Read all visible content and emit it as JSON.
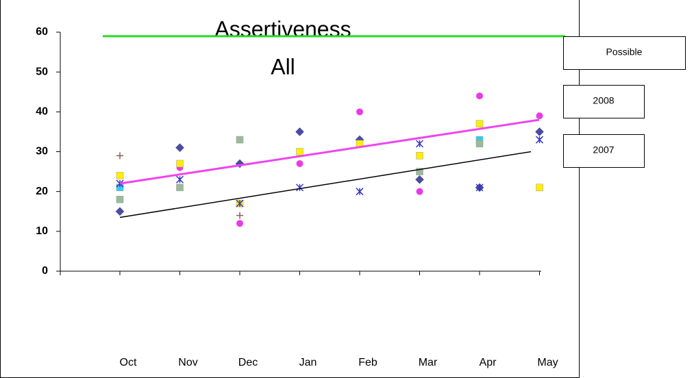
{
  "chart_data": {
    "type": "scatter",
    "title": "Assertiveness",
    "subtitle": "All",
    "categories": [
      "Oct",
      "Nov",
      "Dec",
      "Jan",
      "Feb",
      "Mar",
      "Apr",
      "May"
    ],
    "ylim": [
      0,
      60
    ],
    "yticks": [
      0,
      10,
      20,
      30,
      40,
      50,
      60
    ],
    "series": [
      {
        "color": "#4b4ba8",
        "marker": "diamond",
        "values": [
          15,
          31,
          27,
          35,
          33,
          23,
          21,
          35
        ]
      },
      {
        "color": "#e83be8",
        "marker": "circle",
        "values": [
          18,
          26,
          12,
          27,
          40,
          20,
          44,
          39
        ]
      },
      {
        "color": "#ffee00",
        "marker": "square",
        "values": [
          24,
          27,
          17,
          30,
          32,
          29,
          37,
          21
        ]
      },
      {
        "color": "#33ccee",
        "marker": "square",
        "values": [
          21,
          null,
          null,
          null,
          null,
          null,
          33,
          null
        ]
      },
      {
        "color": "#3333cc",
        "marker": "asterisk",
        "values": [
          22,
          23,
          17,
          21,
          20,
          32,
          21,
          33
        ]
      },
      {
        "color": "#99bb99",
        "marker": "square",
        "values": [
          18,
          21,
          33,
          null,
          null,
          25,
          32,
          null
        ]
      },
      {
        "color": "#995555",
        "marker": "plus",
        "values": [
          29,
          null,
          14,
          null,
          null,
          null,
          null,
          null
        ]
      }
    ],
    "lines": [
      {
        "name": "Possible",
        "color": "#22dd22",
        "values": [
          59,
          59
        ]
      },
      {
        "name": "2008",
        "color": "#ee44ee",
        "values": [
          22,
          38
        ]
      },
      {
        "name": "2007",
        "color": "#000000",
        "values": [
          13.5,
          30
        ]
      }
    ]
  }
}
